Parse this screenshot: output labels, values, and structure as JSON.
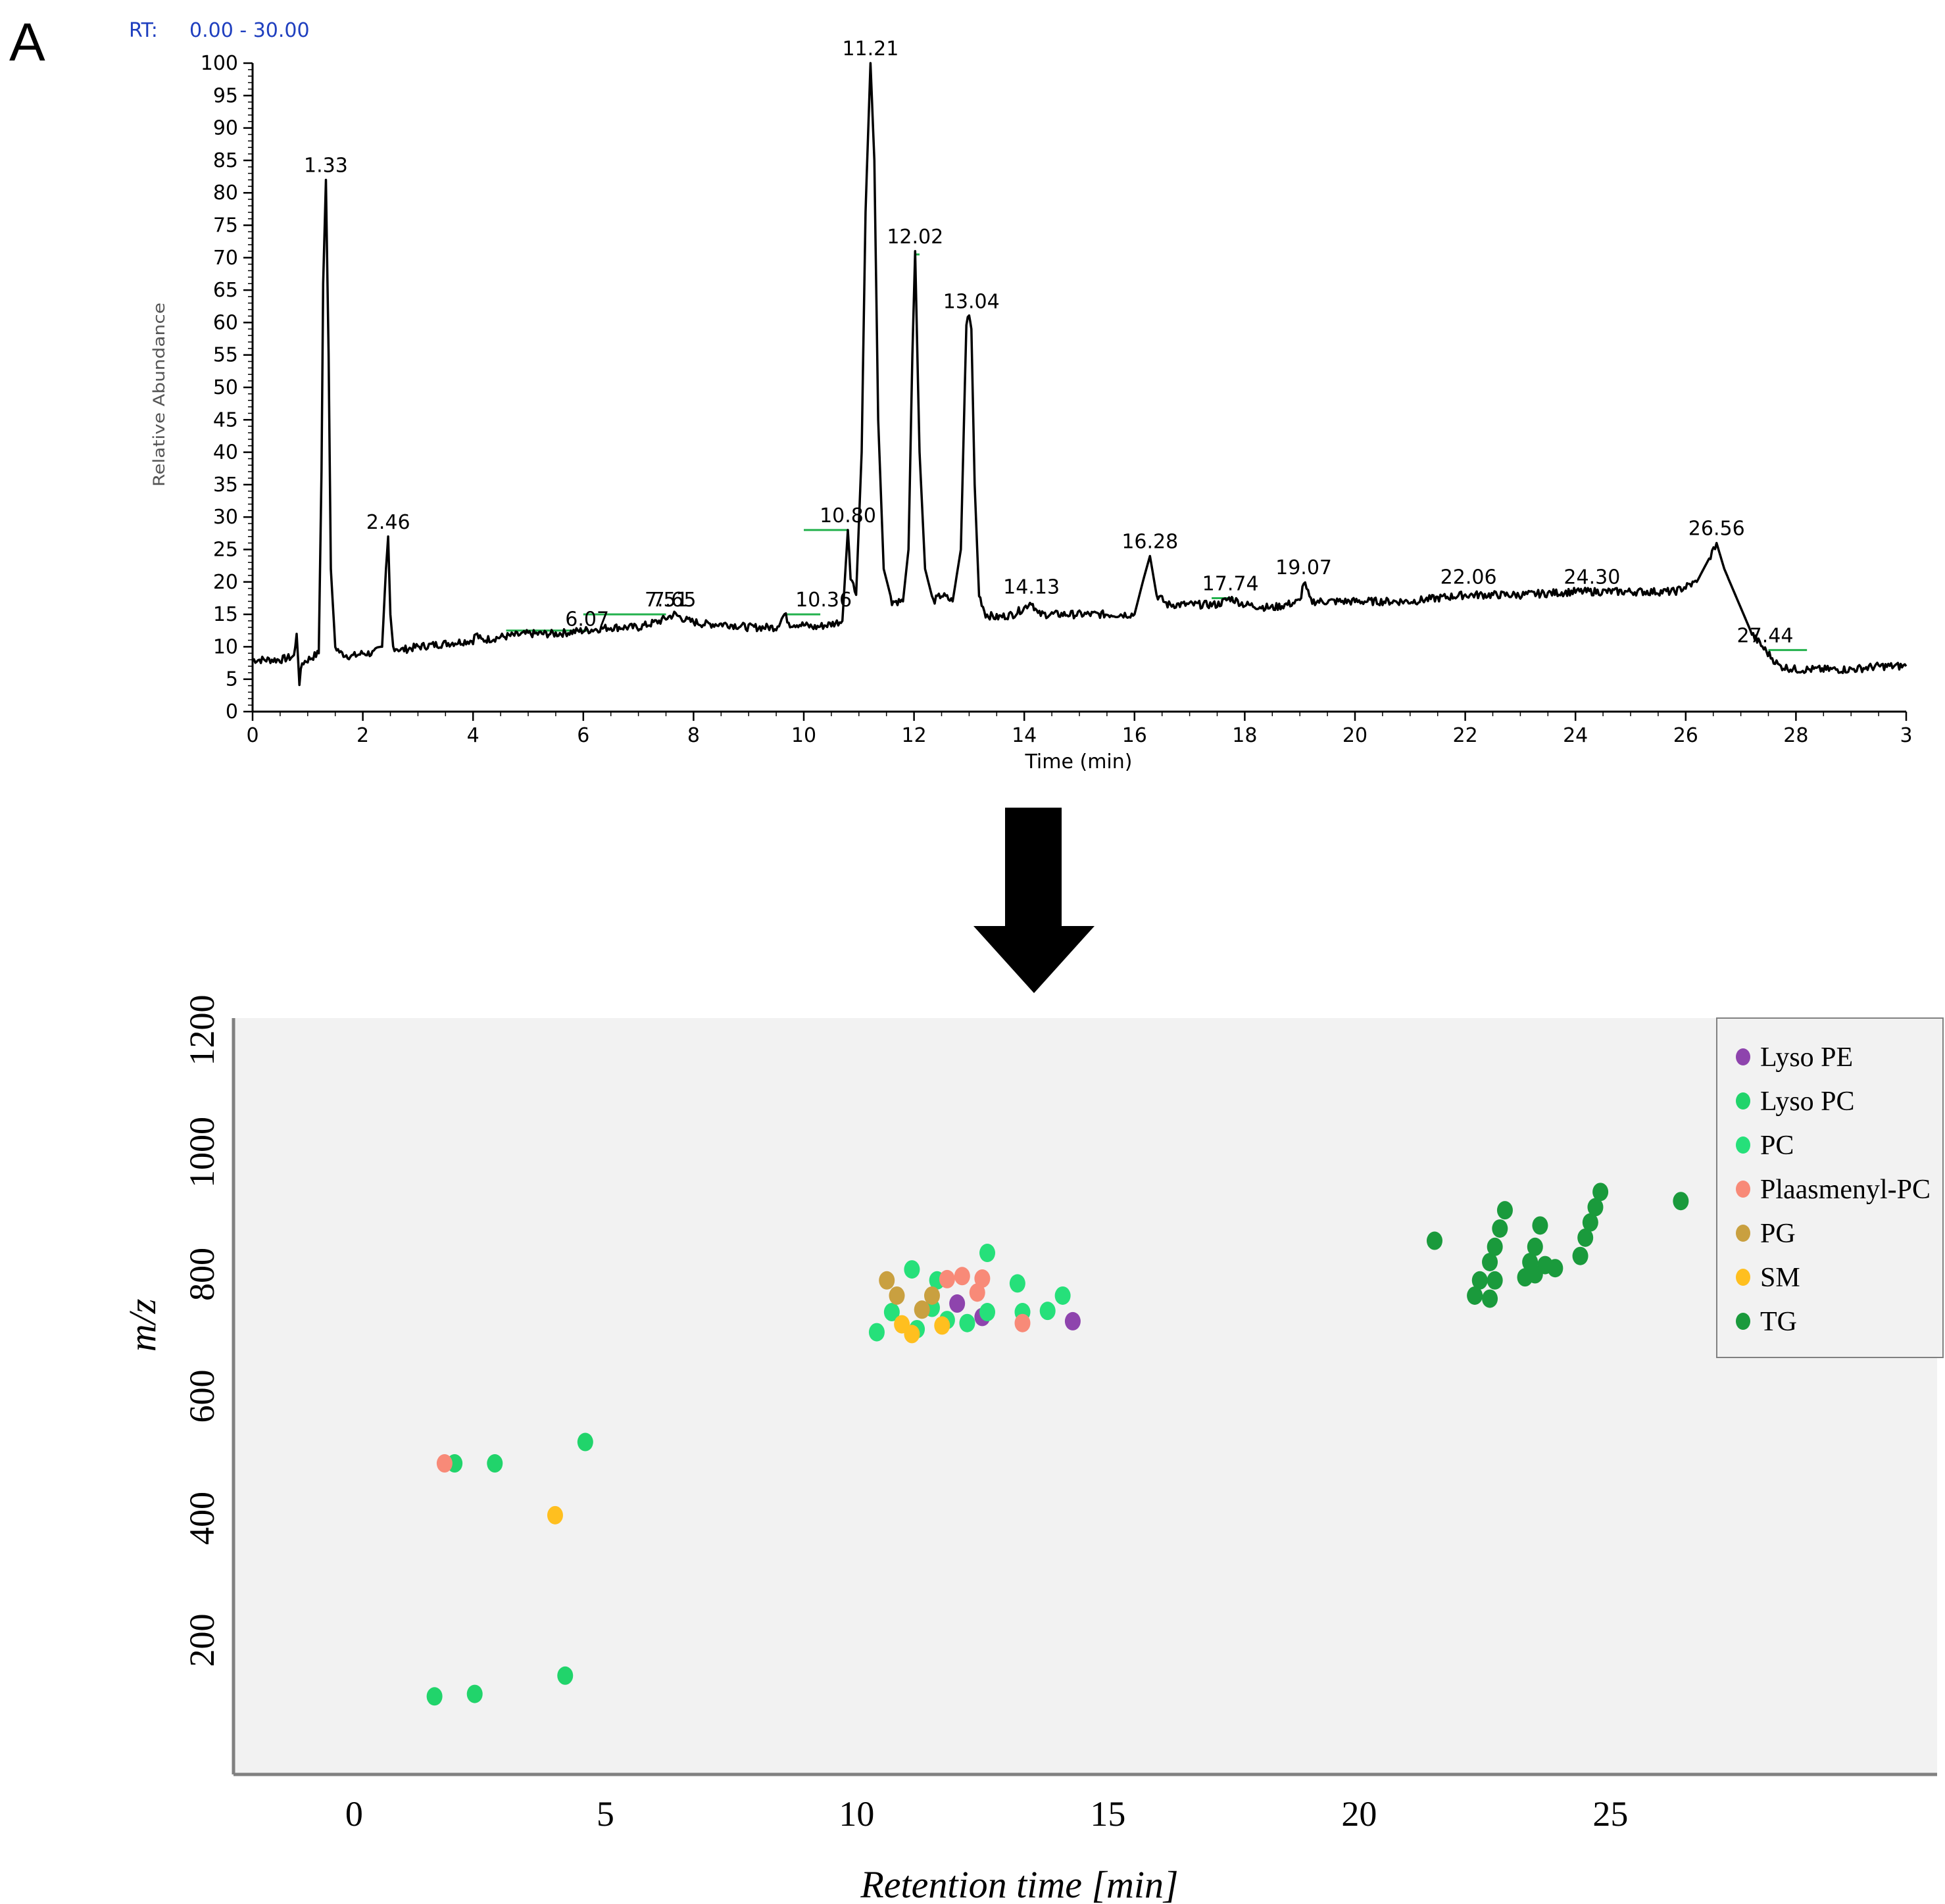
{
  "panel_label": "A",
  "chart_data": [
    {
      "type": "line",
      "title": "RT: 0.00 - 30.00",
      "rt_label": "RT:",
      "rt_range": "0.00 - 30.00",
      "xlabel": "Time (min)",
      "ylabel": "Relative Abundance",
      "xlim": [
        0,
        30
      ],
      "ylim": [
        0,
        100
      ],
      "x_ticks": [
        "0",
        "2",
        "4",
        "6",
        "8",
        "10",
        "12",
        "14",
        "16",
        "18",
        "20",
        "22",
        "24",
        "26",
        "28",
        "3"
      ],
      "y_ticks": [
        "0",
        "5",
        "10",
        "15",
        "20",
        "25",
        "30",
        "35",
        "40",
        "45",
        "50",
        "55",
        "60",
        "65",
        "70",
        "75",
        "80",
        "85",
        "90",
        "95",
        "100"
      ],
      "series": [
        {
          "name": "chromatogram",
          "x": [
            0,
            0.5,
            0.75,
            0.8,
            0.85,
            0.9,
            1.0,
            1.1,
            1.2,
            1.25,
            1.28,
            1.33,
            1.38,
            1.42,
            1.5,
            1.6,
            1.8,
            2.0,
            2.2,
            2.35,
            2.42,
            2.46,
            2.5,
            2.55,
            2.7,
            3.0,
            3.5,
            4.0,
            4.05,
            4.15,
            4.5,
            5.0,
            5.5,
            6.0,
            6.5,
            7.0,
            7.4,
            7.65,
            7.9,
            8.2,
            8.6,
            9.0,
            9.5,
            9.65,
            9.75,
            9.9,
            10.2,
            10.5,
            10.7,
            10.8,
            10.85,
            10.95,
            11.05,
            11.12,
            11.21,
            11.28,
            11.35,
            11.45,
            11.6,
            11.8,
            11.9,
            11.97,
            12.02,
            12.1,
            12.2,
            12.35,
            12.5,
            12.7,
            12.85,
            12.95,
            13.0,
            13.04,
            13.1,
            13.18,
            13.3,
            13.5,
            13.8,
            14.0,
            14.13,
            14.25,
            14.5,
            15.0,
            15.5,
            16.0,
            16.15,
            16.28,
            16.4,
            16.6,
            17.0,
            17.5,
            17.74,
            18.0,
            18.5,
            19.0,
            19.07,
            19.2,
            19.5,
            20.0,
            21.0,
            22.0,
            22.06,
            23.0,
            24.0,
            24.3,
            25.0,
            25.8,
            26.2,
            26.45,
            26.56,
            26.7,
            27.0,
            27.2,
            27.44,
            27.7,
            28.0,
            28.5,
            29.0,
            29.5,
            30.0
          ],
          "y": [
            8,
            8,
            8.5,
            12,
            4.5,
            7.5,
            8,
            8.5,
            9,
            37,
            66,
            82,
            55,
            22,
            10,
            9,
            8.5,
            9,
            9,
            10,
            22,
            27,
            15,
            10,
            9.5,
            10,
            10.5,
            11,
            12,
            11,
            11.5,
            12,
            12,
            12.5,
            13,
            13,
            14,
            15,
            14,
            13.5,
            13.5,
            13,
            13,
            15,
            13.5,
            13.5,
            13,
            13.5,
            14,
            28,
            21,
            18,
            40,
            77,
            100,
            85,
            45,
            22,
            17,
            17,
            25,
            55,
            71,
            40,
            22,
            17,
            18,
            17,
            25,
            60,
            61,
            59,
            35,
            18,
            15,
            14.5,
            15,
            16,
            17,
            15,
            15,
            15,
            15,
            15,
            20,
            24,
            18,
            16.5,
            16.5,
            16.5,
            17.5,
            16.5,
            16,
            17,
            20,
            17,
            17,
            17,
            17,
            18,
            18,
            18,
            18.5,
            18.5,
            18.5,
            18.5,
            20,
            24,
            26,
            22,
            16,
            12,
            9.5,
            7,
            6.5,
            6.5,
            6.5,
            7,
            7
          ]
        }
      ],
      "peak_labels": [
        {
          "x": 1.33,
          "y": 82,
          "label": "1.33"
        },
        {
          "x": 2.46,
          "y": 27,
          "label": "2.46"
        },
        {
          "x": 6.07,
          "y": 12,
          "label": "6.07"
        },
        {
          "x": 7.51,
          "y": 15,
          "label": "7.51"
        },
        {
          "x": 7.65,
          "y": 15,
          "label": "7.65"
        },
        {
          "x": 10.36,
          "y": 15,
          "label": "10.36"
        },
        {
          "x": 10.8,
          "y": 28,
          "label": "10.80"
        },
        {
          "x": 11.21,
          "y": 100,
          "label": "11.21"
        },
        {
          "x": 12.02,
          "y": 71,
          "label": "12.02"
        },
        {
          "x": 13.04,
          "y": 61,
          "label": "13.04"
        },
        {
          "x": 14.13,
          "y": 17,
          "label": "14.13"
        },
        {
          "x": 16.28,
          "y": 24,
          "label": "16.28"
        },
        {
          "x": 17.74,
          "y": 17.5,
          "label": "17.74"
        },
        {
          "x": 19.07,
          "y": 20,
          "label": "19.07"
        },
        {
          "x": 22.06,
          "y": 18.5,
          "label": "22.06"
        },
        {
          "x": 24.3,
          "y": 18.5,
          "label": "24.30"
        },
        {
          "x": 26.56,
          "y": 26,
          "label": "26.56"
        },
        {
          "x": 27.44,
          "y": 9.5,
          "label": "27.44"
        }
      ],
      "integration_baselines": [
        {
          "x1": 4.6,
          "x2": 6.1,
          "y": 12.5
        },
        {
          "x1": 6.0,
          "x2": 7.5,
          "y": 15
        },
        {
          "x1": 9.7,
          "x2": 10.3,
          "y": 15
        },
        {
          "x1": 10.0,
          "x2": 10.8,
          "y": 28
        },
        {
          "x1": 12.0,
          "x2": 12.1,
          "y": 70.5
        },
        {
          "x1": 17.4,
          "x2": 17.8,
          "y": 17.5
        },
        {
          "x1": 27.5,
          "x2": 28.2,
          "y": 9.5
        }
      ],
      "colors": {
        "line": "#000000",
        "baseline": "#22b14c",
        "rt_text": "#1f3fbf"
      }
    },
    {
      "type": "scatter",
      "xlabel": "Retention time [min]",
      "ylabel": "m/z",
      "xlim": [
        -2.4,
        31.5
      ],
      "ylim": [
        -20,
        1220
      ],
      "x_ticks": [
        "0",
        "5",
        "10",
        "15",
        "20",
        "25"
      ],
      "y_ticks": [
        "200",
        "400",
        "600",
        "800",
        "1000",
        "1200"
      ],
      "legend_position": "top-right",
      "series": [
        {
          "name": "Lyso PE",
          "color": "#8e44ad",
          "points": [
            [
              12.0,
              752
            ],
            [
              12.5,
              730
            ],
            [
              14.3,
              723
            ]
          ]
        },
        {
          "name": "Lyso PC",
          "color": "#21d46b",
          "points": [
            [
              1.6,
              108
            ],
            [
              2.4,
              112
            ],
            [
              4.2,
              142
            ],
            [
              2.0,
              490
            ],
            [
              2.8,
              490
            ],
            [
              4.6,
              525
            ]
          ]
        },
        {
          "name": "PC",
          "color": "#26e07a",
          "points": [
            [
              11.1,
              808
            ],
            [
              11.6,
              790
            ],
            [
              12.6,
              835
            ],
            [
              13.2,
              785
            ],
            [
              10.7,
              738
            ],
            [
              11.2,
              710
            ],
            [
              11.8,
              725
            ],
            [
              12.6,
              738
            ],
            [
              13.3,
              738
            ],
            [
              13.8,
              740
            ],
            [
              14.1,
              765
            ],
            [
              10.4,
              705
            ],
            [
              11.5,
              745
            ],
            [
              12.2,
              720
            ]
          ]
        },
        {
          "name": "Plaasmenyl-PC",
          "color": "#f88a78",
          "points": [
            [
              1.8,
              490
            ],
            [
              11.8,
              792
            ],
            [
              12.1,
              797
            ],
            [
              12.5,
              793
            ],
            [
              12.4,
              770
            ],
            [
              13.3,
              720
            ]
          ]
        },
        {
          "name": "PG",
          "color": "#c9a040",
          "points": [
            [
              10.6,
              790
            ],
            [
              10.8,
              765
            ],
            [
              11.3,
              742
            ],
            [
              11.5,
              765
            ]
          ]
        },
        {
          "name": "SM",
          "color": "#ffbf1f",
          "points": [
            [
              4.0,
              405
            ],
            [
              10.9,
              718
            ],
            [
              11.1,
              702
            ],
            [
              11.7,
              716
            ]
          ]
        },
        {
          "name": "TG",
          "color": "#1a9a3c",
          "points": [
            [
              21.5,
              855
            ],
            [
              22.3,
              765
            ],
            [
              22.4,
              790
            ],
            [
              22.6,
              820
            ],
            [
              22.7,
              845
            ],
            [
              22.8,
              875
            ],
            [
              22.9,
              905
            ],
            [
              22.7,
              790
            ],
            [
              22.6,
              760
            ],
            [
              23.3,
              795
            ],
            [
              23.4,
              820
            ],
            [
              23.5,
              845
            ],
            [
              23.6,
              880
            ],
            [
              23.7,
              815
            ],
            [
              23.5,
              800
            ],
            [
              23.9,
              810
            ],
            [
              24.4,
              830
            ],
            [
              24.5,
              860
            ],
            [
              24.6,
              885
            ],
            [
              24.7,
              910
            ],
            [
              24.8,
              935
            ],
            [
              26.4,
              920
            ]
          ]
        }
      ],
      "colors": {
        "plot_bg": "#f2f2f2",
        "axis": "#808080"
      }
    }
  ],
  "legend": {
    "items": [
      {
        "label": "Lyso PE",
        "color": "#8e44ad"
      },
      {
        "label": "Lyso PC",
        "color": "#21d46b"
      },
      {
        "label": "PC",
        "color": "#26e07a"
      },
      {
        "label": "Plaasmenyl-PC",
        "color": "#f88a78"
      },
      {
        "label": "PG",
        "color": "#c9a040"
      },
      {
        "label": "SM",
        "color": "#ffbf1f"
      },
      {
        "label": "TG",
        "color": "#1a9a3c"
      }
    ]
  },
  "arrow": {
    "icon": "down-arrow-icon",
    "color": "#000000"
  }
}
